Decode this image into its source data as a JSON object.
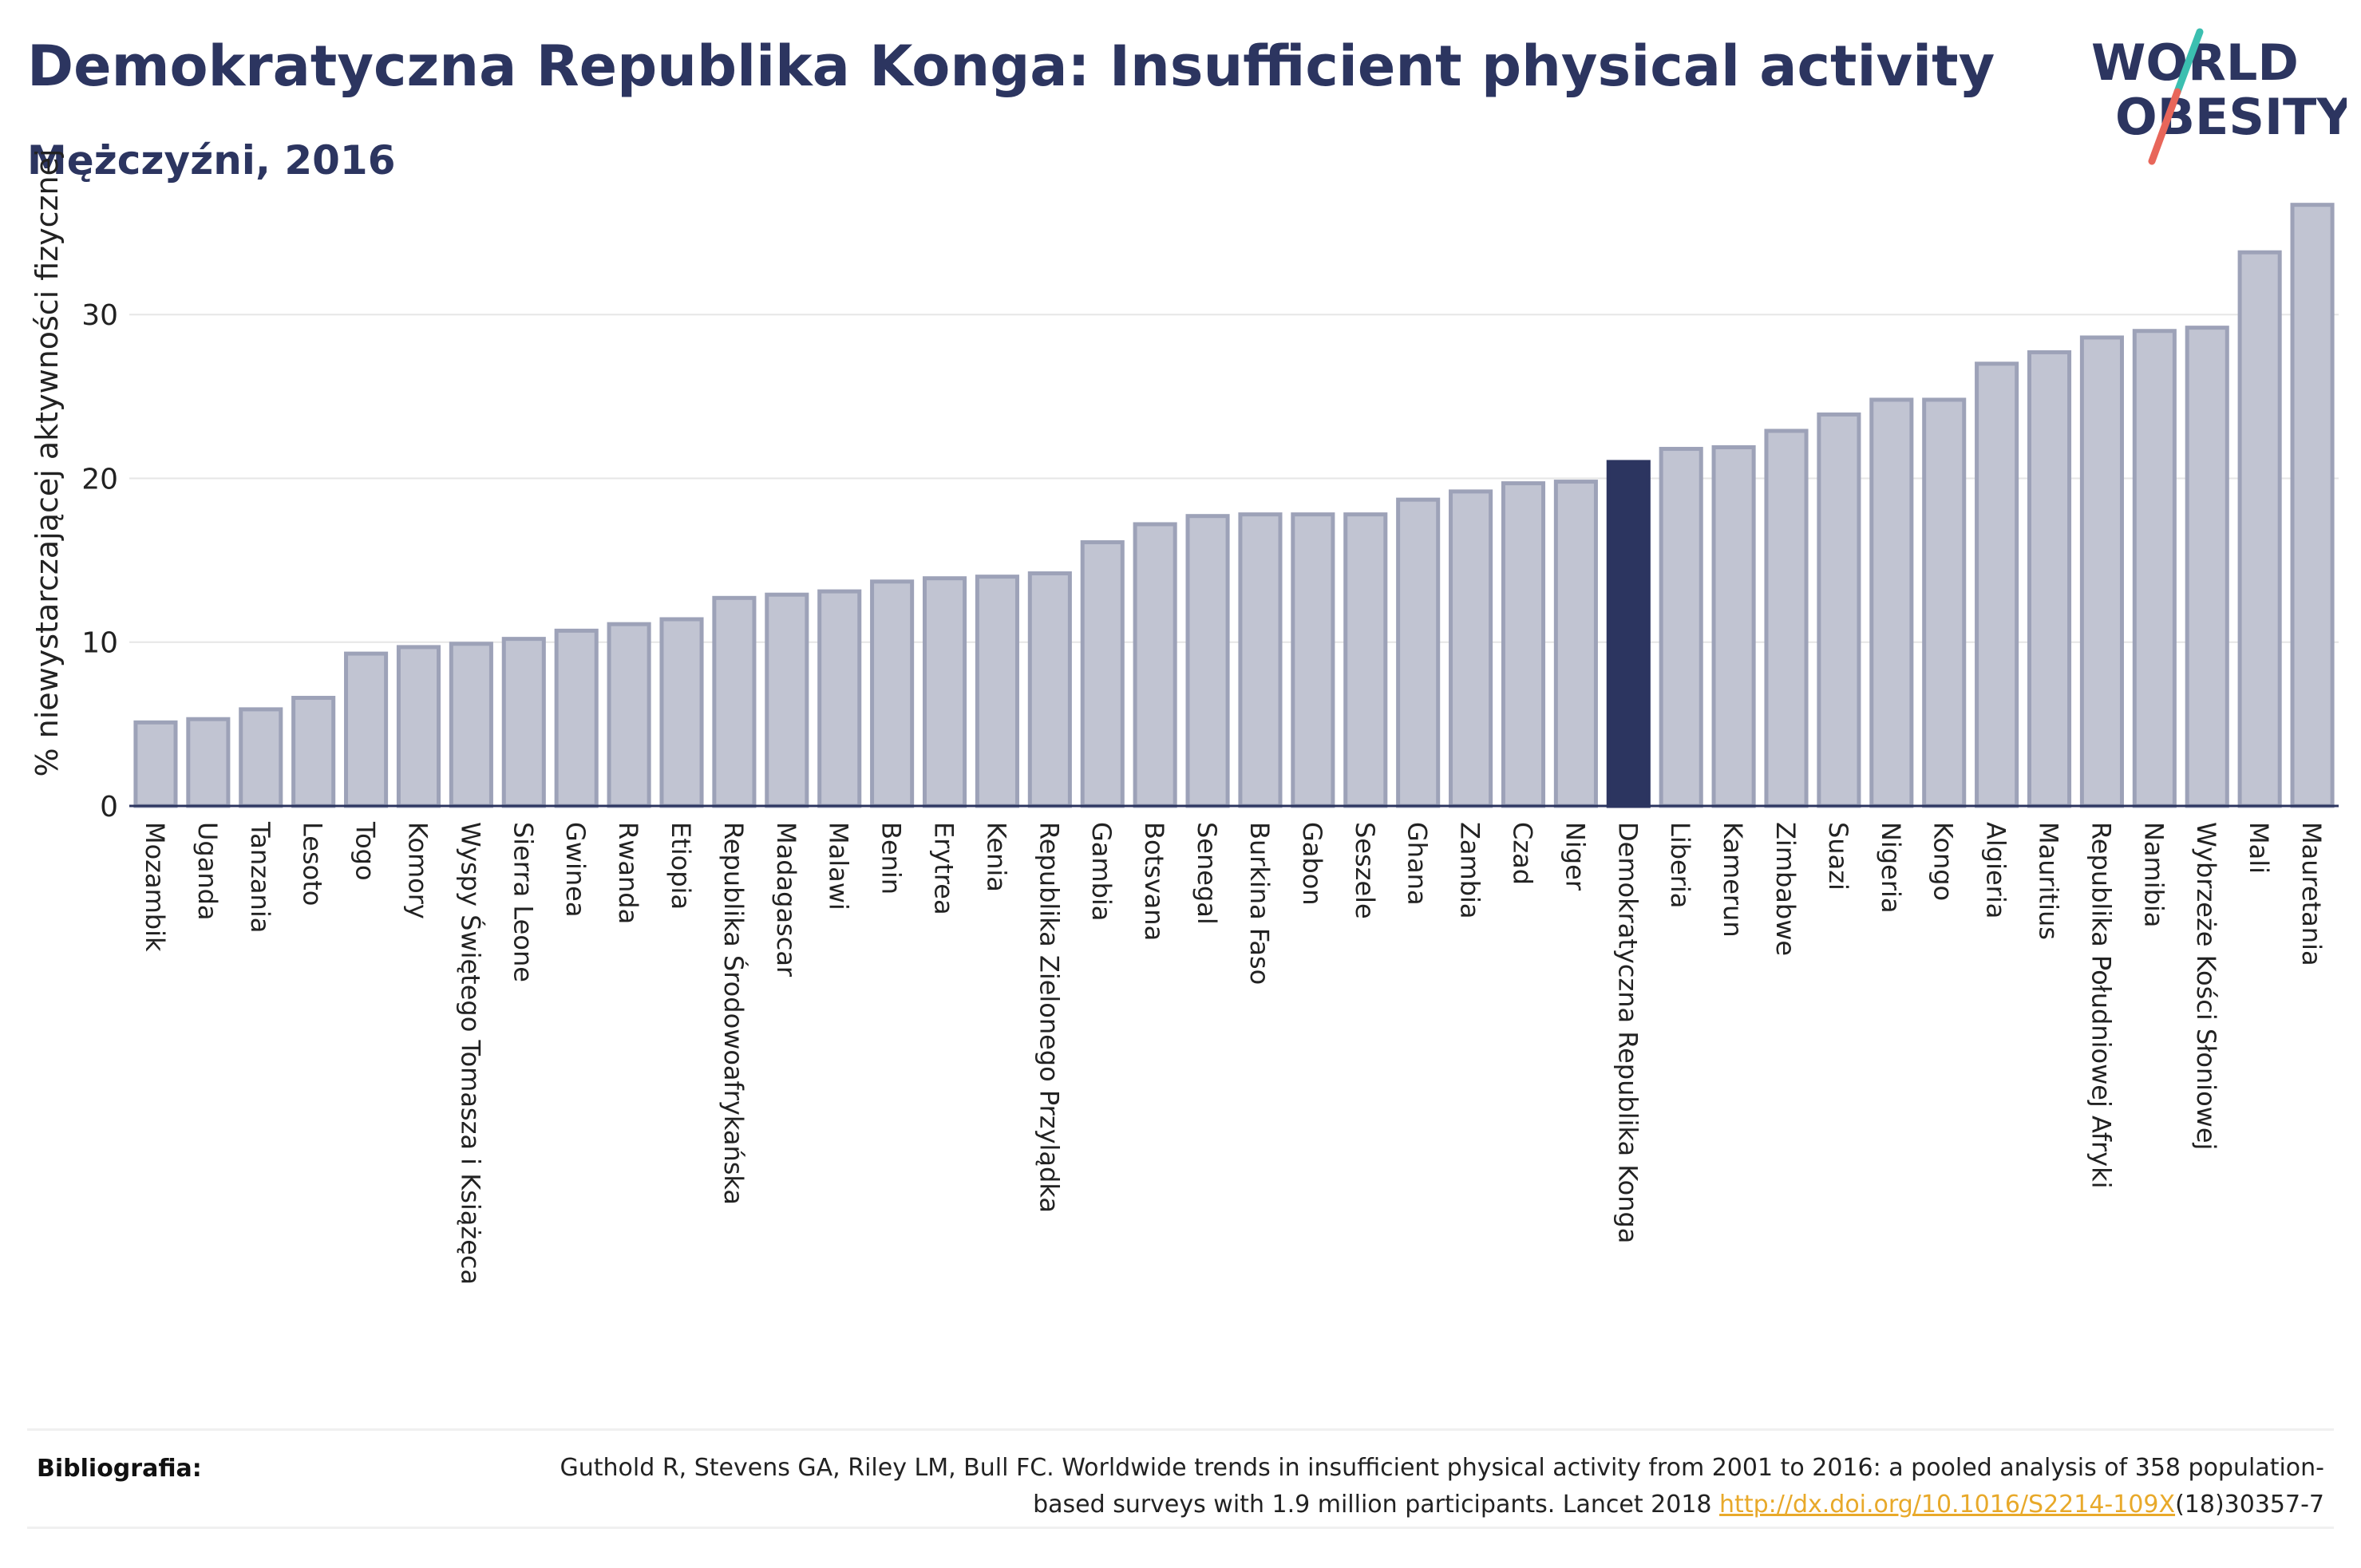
{
  "header": {
    "title": "Demokratyczna Republika Konga: Insufficient physical activity",
    "subtitle": "Mężczyźni, 2016"
  },
  "logo": {
    "line1": "WORLD",
    "line2": "OBESITY",
    "slash_colors": [
      "#3bbfb0",
      "#e8665a"
    ],
    "text_color": "#2c3560"
  },
  "colors": {
    "bar": "#c1c4d2",
    "bar_stroke": "#9da2b8",
    "highlight": "#2c3560",
    "grid": "#e6e6e6",
    "axis_text": "#222222"
  },
  "chart_data": {
    "type": "bar",
    "title": "Demokratyczna Republika Konga: Insufficient physical activity",
    "subtitle": "Mężczyźni, 2016",
    "xlabel": "",
    "ylabel": "% niewystarczającej aktywności fizycznej",
    "ylim": [
      0,
      38
    ],
    "yticks": [
      0,
      10,
      20,
      30
    ],
    "grid": true,
    "highlight": "Demokratyczna Republika Konga",
    "categories": [
      "Mozambik",
      "Uganda",
      "Tanzania",
      "Lesoto",
      "Togo",
      "Komory",
      "Wyspy Świętego Tomasza i Książęca",
      "Sierra Leone",
      "Gwinea",
      "Rwanda",
      "Etiopia",
      "Republika Środowoafrykańska",
      "Madagascar",
      "Malawi",
      "Benin",
      "Erytrea",
      "Kenia",
      "Republika Zielonego Przylądka",
      "Gambia",
      "Botsvana",
      "Senegal",
      "Burkina Faso",
      "Gabon",
      "Seszele",
      "Ghana",
      "Zambia",
      "Czad",
      "Niger",
      "Demokratyczna Republika Konga",
      "Liberia",
      "Kamerun",
      "Zimbabwe",
      "Suazi",
      "Nigeria",
      "Kongo",
      "Algieria",
      "Mauritius",
      "Republika Południowej Afryki",
      "Namibia",
      "Wybrzeże Kości Słoniowej",
      "Mali",
      "Mauretania"
    ],
    "values": [
      5.1,
      5.3,
      5.9,
      6.6,
      9.3,
      9.7,
      9.9,
      10.2,
      10.7,
      11.1,
      11.4,
      12.7,
      12.9,
      13.1,
      13.7,
      13.9,
      14.0,
      14.2,
      16.1,
      17.2,
      17.7,
      17.8,
      17.8,
      17.8,
      18.7,
      19.2,
      19.7,
      19.8,
      21.0,
      21.8,
      21.9,
      22.9,
      23.9,
      24.8,
      24.8,
      27.0,
      27.7,
      28.6,
      29.0,
      29.2,
      33.8,
      36.7
    ]
  },
  "footer": {
    "label": "Bibliografia:",
    "text": "Guthold R, Stevens GA, Riley LM, Bull FC. Worldwide trends in insufficient physical activity from 2001 to 2016: a pooled analysis of 358 population-based surveys with 1.9 million participants. Lancet 2018 ",
    "link": "http://dx.doi.org/10.1016/S2214-109X",
    "suffix": "(18)30357-7"
  }
}
